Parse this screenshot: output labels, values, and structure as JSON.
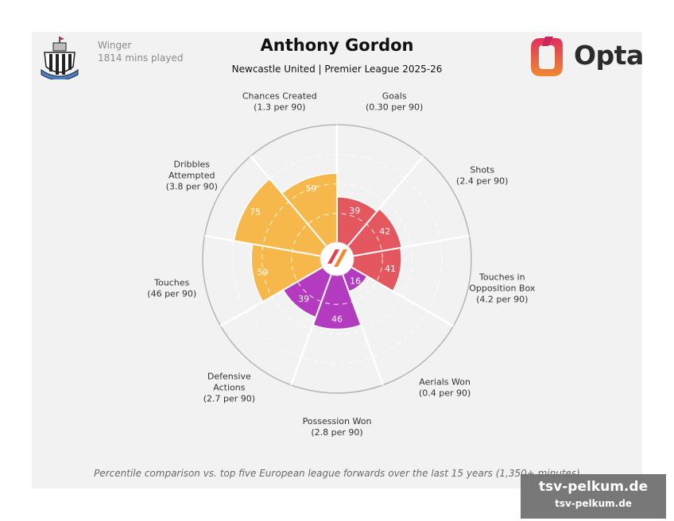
{
  "header": {
    "position": "Winger",
    "minutes": "1814 mins played",
    "title": "Anthony Gordon",
    "subtitle": "Newcastle United | Premier League 2025-26",
    "brand": "Opta"
  },
  "footer": "Percentile comparison vs. top five European league forwards over the last 15 years (1,350+ minutes)",
  "watermark": {
    "line1": "tsv-pelkum.de",
    "line2": "tsv-pelkum.de"
  },
  "colors": {
    "attacking": "#e5575e",
    "defending": "#b23bbf",
    "possession": "#f6b84a",
    "card": "#f2f2f2"
  },
  "icons": [
    "newcastle-crest-icon",
    "opta-logo-icon",
    "center-logo-icon"
  ],
  "chart_data": {
    "type": "polar-bar",
    "rlim": [
      0,
      100
    ],
    "categories": [
      {
        "lines": [
          "Goals",
          "(0.30 per 90)"
        ],
        "value": 39,
        "group": "attacking"
      },
      {
        "lines": [
          "Shots",
          "(2.4 per 90)"
        ],
        "value": 42,
        "group": "attacking"
      },
      {
        "lines": [
          "Touches in",
          "Opposition Box",
          "(4.2 per 90)"
        ],
        "value": 41,
        "group": "attacking"
      },
      {
        "lines": [
          "Aerials Won",
          "(0.4 per 90)"
        ],
        "value": 16,
        "group": "defending"
      },
      {
        "lines": [
          "Possession Won",
          "(2.8 per 90)"
        ],
        "value": 46,
        "group": "defending"
      },
      {
        "lines": [
          "Defensive",
          "Actions",
          "(2.7 per 90)"
        ],
        "value": 39,
        "group": "defending"
      },
      {
        "lines": [
          "Touches",
          "(46 per 90)"
        ],
        "value": 59,
        "group": "possession"
      },
      {
        "lines": [
          "Dribbles",
          "Attempted",
          "(3.8 per 90)"
        ],
        "value": 75,
        "group": "possession"
      },
      {
        "lines": [
          "Chances Created",
          "(1.3 per 90)"
        ],
        "value": 59,
        "group": "possession"
      }
    ]
  }
}
